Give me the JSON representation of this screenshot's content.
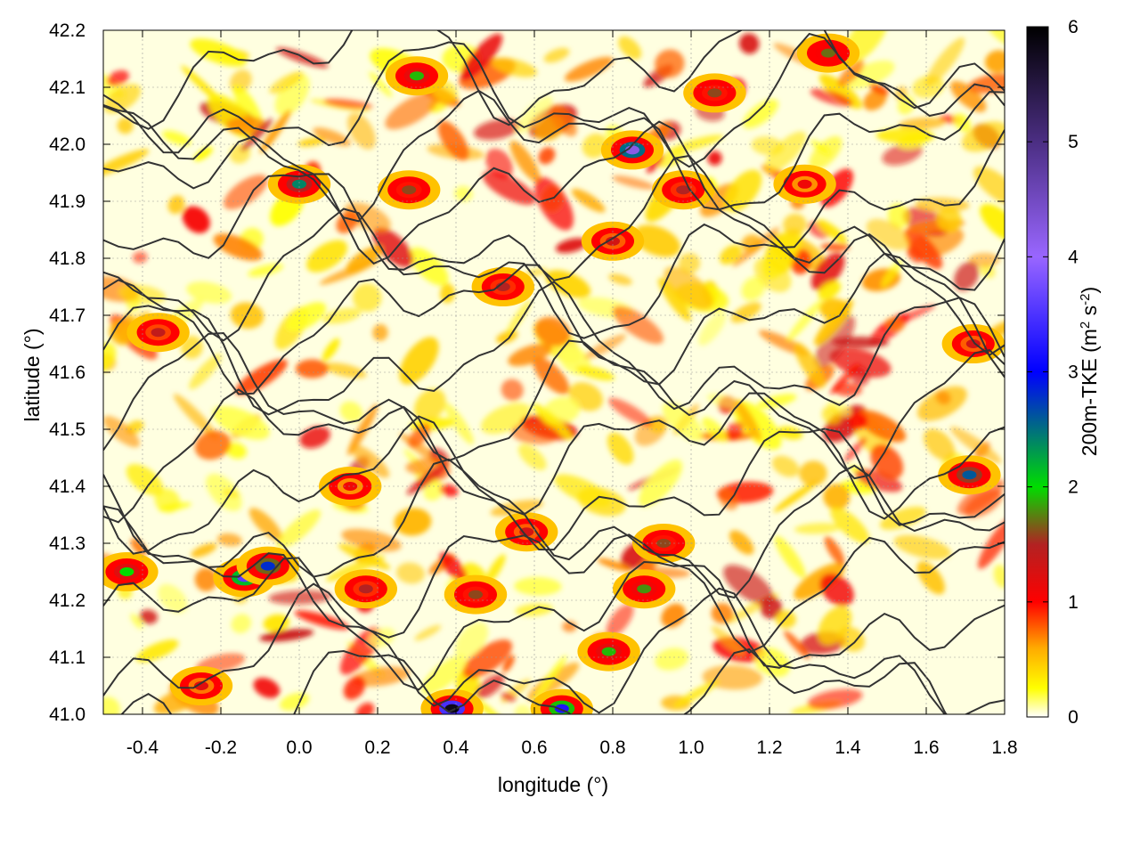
{
  "chart_data": {
    "type": "heatmap",
    "title": "",
    "xlabel": "longitude (°)",
    "ylabel": "latitude (°)",
    "colorbar_label_parts": [
      "200m-TKE (m",
      "2",
      " s",
      "-2",
      ")"
    ],
    "x_range": [
      -0.5,
      1.8
    ],
    "y_range": [
      41.0,
      42.2
    ],
    "x_ticks": [
      -0.4,
      -0.2,
      0.0,
      0.2,
      0.4,
      0.6,
      0.8,
      1.0,
      1.2,
      1.4,
      1.6,
      1.8
    ],
    "x_tick_labels": [
      "-0.4",
      "-0.2",
      "0.0",
      "0.2",
      "0.4",
      "0.6",
      "0.8",
      "1.0",
      "1.2",
      "1.4",
      "1.6",
      "1.8"
    ],
    "y_ticks": [
      41.0,
      41.1,
      41.2,
      41.3,
      41.4,
      41.5,
      41.6,
      41.7,
      41.8,
      41.9,
      42.0,
      42.1,
      42.2
    ],
    "y_tick_labels": [
      "41.0",
      "41.1",
      "41.2",
      "41.3",
      "41.4",
      "41.5",
      "41.6",
      "41.7",
      "41.8",
      "41.9",
      "42.0",
      "42.1",
      "42.2"
    ],
    "colorbar_range": [
      0,
      6
    ],
    "colorbar_ticks": [
      0,
      1,
      2,
      3,
      4,
      5,
      6
    ],
    "colorbar_tick_labels": [
      "0",
      "1",
      "2",
      "3",
      "4",
      "5",
      "6"
    ],
    "colormap_stops": [
      {
        "value": 0.0,
        "color": "#ffffff"
      },
      {
        "value": 0.25,
        "color": "#ffff00"
      },
      {
        "value": 0.6,
        "color": "#ffaa00"
      },
      {
        "value": 1.0,
        "color": "#ff0000"
      },
      {
        "value": 1.5,
        "color": "#b22222"
      },
      {
        "value": 2.0,
        "color": "#00dd00"
      },
      {
        "value": 3.0,
        "color": "#0000ff"
      },
      {
        "value": 4.0,
        "color": "#9966ff"
      },
      {
        "value": 5.0,
        "color": "#4b2e83"
      },
      {
        "value": 6.0,
        "color": "#000000"
      }
    ],
    "grid": true,
    "contour_color": "#333333",
    "tke_hotspots": [
      {
        "lon": -0.14,
        "lat": 41.24,
        "value": 3.6
      },
      {
        "lon": -0.08,
        "lat": 41.26,
        "value": 2.8
      },
      {
        "lon": 0.0,
        "lat": 41.93,
        "value": 2.4
      },
      {
        "lon": 0.39,
        "lat": 41.01,
        "value": 5.8
      },
      {
        "lon": 0.67,
        "lat": 41.01,
        "value": 3.2
      },
      {
        "lon": 0.85,
        "lat": 41.99,
        "value": 4.2
      },
      {
        "lon": 0.3,
        "lat": 42.12,
        "value": 1.9
      },
      {
        "lon": 0.28,
        "lat": 41.92,
        "value": 1.6
      },
      {
        "lon": -0.44,
        "lat": 41.25,
        "value": 2.0
      },
      {
        "lon": 0.52,
        "lat": 41.75,
        "value": 1.5
      },
      {
        "lon": 0.88,
        "lat": 41.22,
        "value": 1.8
      },
      {
        "lon": 0.79,
        "lat": 41.11,
        "value": 1.9
      },
      {
        "lon": 1.71,
        "lat": 41.42,
        "value": 2.6
      },
      {
        "lon": 1.35,
        "lat": 42.16,
        "value": 1.7
      },
      {
        "lon": 0.93,
        "lat": 41.3,
        "value": 1.6
      },
      {
        "lon": 0.17,
        "lat": 41.22,
        "value": 1.5
      },
      {
        "lon": 0.45,
        "lat": 41.21,
        "value": 1.6
      },
      {
        "lon": 0.98,
        "lat": 41.92,
        "value": 1.5
      },
      {
        "lon": 1.06,
        "lat": 42.09,
        "value": 1.6
      },
      {
        "lon": -0.36,
        "lat": 41.67,
        "value": 1.4
      },
      {
        "lon": 1.72,
        "lat": 41.65,
        "value": 1.3
      },
      {
        "lon": 0.8,
        "lat": 41.83,
        "value": 1.3
      },
      {
        "lon": 0.13,
        "lat": 41.4,
        "value": 1.1
      },
      {
        "lon": -0.25,
        "lat": 41.05,
        "value": 1.2
      },
      {
        "lon": 0.58,
        "lat": 41.32,
        "value": 1.3
      },
      {
        "lon": 1.29,
        "lat": 41.93,
        "value": 1.1
      }
    ]
  }
}
